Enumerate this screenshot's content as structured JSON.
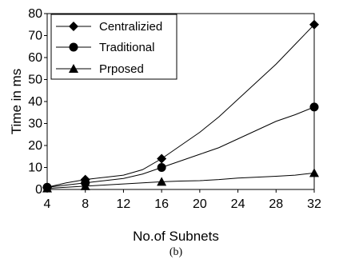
{
  "chart_data": {
    "type": "line",
    "caption": "(b)",
    "xlabel": "No.of Subnets",
    "ylabel": "Time in ms",
    "xlim": [
      4,
      32
    ],
    "ylim": [
      0,
      80
    ],
    "x_ticks": [
      "4",
      "8",
      "12",
      "16",
      "20",
      "24",
      "28",
      "32"
    ],
    "y_ticks": [
      "0",
      "10",
      "20",
      "30",
      "40",
      "50",
      "60",
      "70",
      "80"
    ],
    "grid": false,
    "legend_position": "top-left",
    "series": [
      {
        "name": "Centralizied",
        "marker": "diamond",
        "x": [
          4,
          6,
          8,
          10,
          12,
          14,
          16,
          18,
          20,
          22,
          24,
          26,
          28,
          30,
          32
        ],
        "y": [
          1,
          3,
          4.5,
          5.5,
          6.5,
          9,
          14,
          20,
          26,
          33,
          41,
          49,
          57,
          66,
          75
        ],
        "markers_at": [
          4,
          8,
          16,
          32
        ]
      },
      {
        "name": "Traditional",
        "marker": "circle",
        "x": [
          4,
          6,
          8,
          10,
          12,
          14,
          16,
          18,
          20,
          22,
          24,
          26,
          28,
          30,
          32
        ],
        "y": [
          1,
          2,
          3,
          4,
          5,
          7,
          10,
          13,
          16,
          19,
          23,
          27,
          31,
          34,
          37.5
        ],
        "markers_at": [
          4,
          8,
          16,
          32
        ]
      },
      {
        "name": "Prposed",
        "marker": "triangle",
        "x": [
          4,
          6,
          8,
          10,
          12,
          14,
          16,
          18,
          20,
          22,
          24,
          26,
          28,
          30,
          32
        ],
        "y": [
          0.5,
          1,
          1.5,
          2,
          2.5,
          3,
          3.5,
          3.8,
          4,
          4.5,
          5.2,
          5.6,
          6,
          6.5,
          7.5
        ],
        "markers_at": [
          4,
          8,
          16,
          32
        ]
      }
    ]
  }
}
